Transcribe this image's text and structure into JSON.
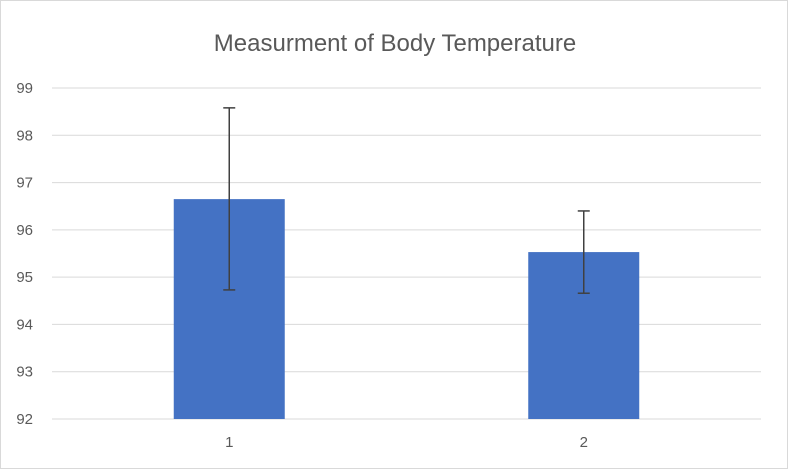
{
  "chart_data": {
    "type": "bar",
    "title": "Measurment  of Body Temperature",
    "xlabel": "",
    "ylabel": "",
    "categories": [
      "1",
      "2"
    ],
    "values": [
      96.65,
      95.53
    ],
    "error_bars": [
      {
        "low": 94.73,
        "high": 98.58
      },
      {
        "low": 94.66,
        "high": 96.4
      }
    ],
    "ylim": [
      92,
      99
    ],
    "yticks": [
      "92",
      "93",
      "94",
      "95",
      "96",
      "97",
      "98",
      "99"
    ],
    "grid": true,
    "legend": "none",
    "colors": {
      "bar": "#4472c4",
      "grid": "#d9d9d9",
      "error": "#404040",
      "text": "#595959"
    }
  }
}
